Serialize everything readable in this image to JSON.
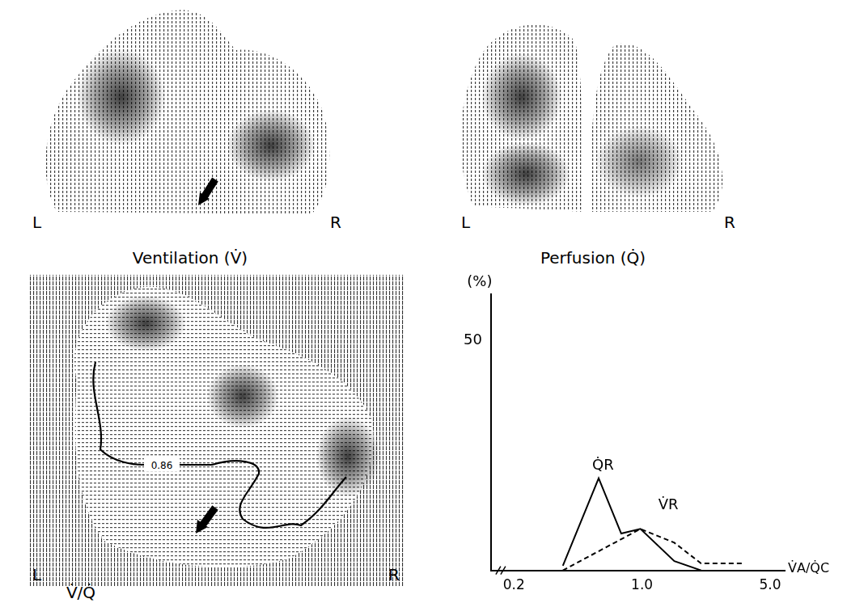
{
  "panels": [
    {
      "title": "Ventilation (V̇)",
      "left_label": "L",
      "right_label": "R"
    },
    {
      "title": "Perfusion (Q̇)",
      "left_label": "L",
      "right_label": "R"
    },
    {
      "title": "V̇/Q̇",
      "left_label": "L",
      "right_label": "R",
      "contour_label": "0.86"
    }
  ],
  "chart_data": {
    "type": "line",
    "y_label": "(%)",
    "x_label": "V̇A/Q̇C",
    "log": "x",
    "grid": false,
    "xlim": [
      0.15,
      6
    ],
    "xticks": [
      {
        "value": 0.2,
        "label": "0.2"
      },
      {
        "value": 1,
        "label": "1.0"
      },
      {
        "value": 5,
        "label": "5.0"
      }
    ],
    "ylim": [
      0,
      60
    ],
    "yticks": [
      50
    ],
    "series": [
      {
        "name": "Q̇R",
        "color": "#000000",
        "line_style": "solid",
        "x": [
          0.37,
          0.58,
          0.77,
          0.98,
          1.5,
          2.1
        ],
        "values": [
          1,
          20,
          8,
          9,
          2,
          0
        ]
      },
      {
        "name": "V̇R",
        "color": "#000000",
        "line_style": "dashed",
        "x": [
          0.37,
          0.98,
          1.5,
          2.1,
          3.5
        ],
        "values": [
          0,
          9,
          6,
          1.5,
          1.5
        ]
      }
    ]
  }
}
